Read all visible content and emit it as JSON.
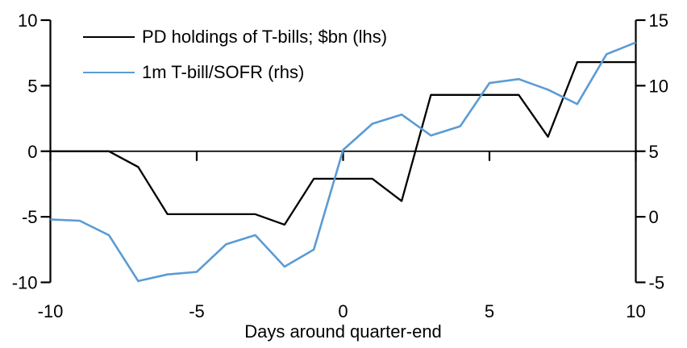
{
  "chart_data": {
    "type": "line",
    "title": "",
    "xlabel": "Days around quarter-end",
    "x_range": [
      -10,
      10
    ],
    "x": [
      -10,
      -9,
      -8,
      -7,
      -6,
      -5,
      -4,
      -3,
      -2,
      -1,
      0,
      1,
      2,
      3,
      4,
      5,
      6,
      7,
      8,
      9,
      10
    ],
    "x_ticks": [
      -10,
      -5,
      0,
      5,
      10
    ],
    "left_axis": {
      "ticks": [
        10,
        5,
        0,
        -5,
        -10
      ],
      "range": [
        -10,
        10
      ]
    },
    "right_axis": {
      "ticks": [
        15,
        10,
        5,
        0,
        -5
      ],
      "range": [
        -5,
        15
      ]
    },
    "grid": false,
    "legend_position": "top-left",
    "axis_color": "#000000",
    "series": [
      {
        "name": "PD holdings of T-bills; $bn (lhs)",
        "axis": "left",
        "color": "#000000",
        "values": [
          0,
          0,
          0,
          -1.2,
          -4.8,
          -4.8,
          -4.8,
          -4.8,
          -5.6,
          -2.1,
          -2.1,
          -2.1,
          -3.8,
          4.3,
          4.3,
          4.3,
          4.3,
          1.1,
          6.8,
          6.8,
          6.8
        ]
      },
      {
        "name": "1m T-bill/SOFR (rhs)",
        "axis": "right",
        "color": "#5B9BD5",
        "values": [
          -0.2,
          -0.3,
          -1.4,
          -4.9,
          -4.4,
          -4.2,
          -2.1,
          -1.4,
          -3.8,
          -2.5,
          5.1,
          7.1,
          7.8,
          6.2,
          6.9,
          10.2,
          10.5,
          9.7,
          8.6,
          12.4,
          13.3
        ]
      }
    ]
  }
}
